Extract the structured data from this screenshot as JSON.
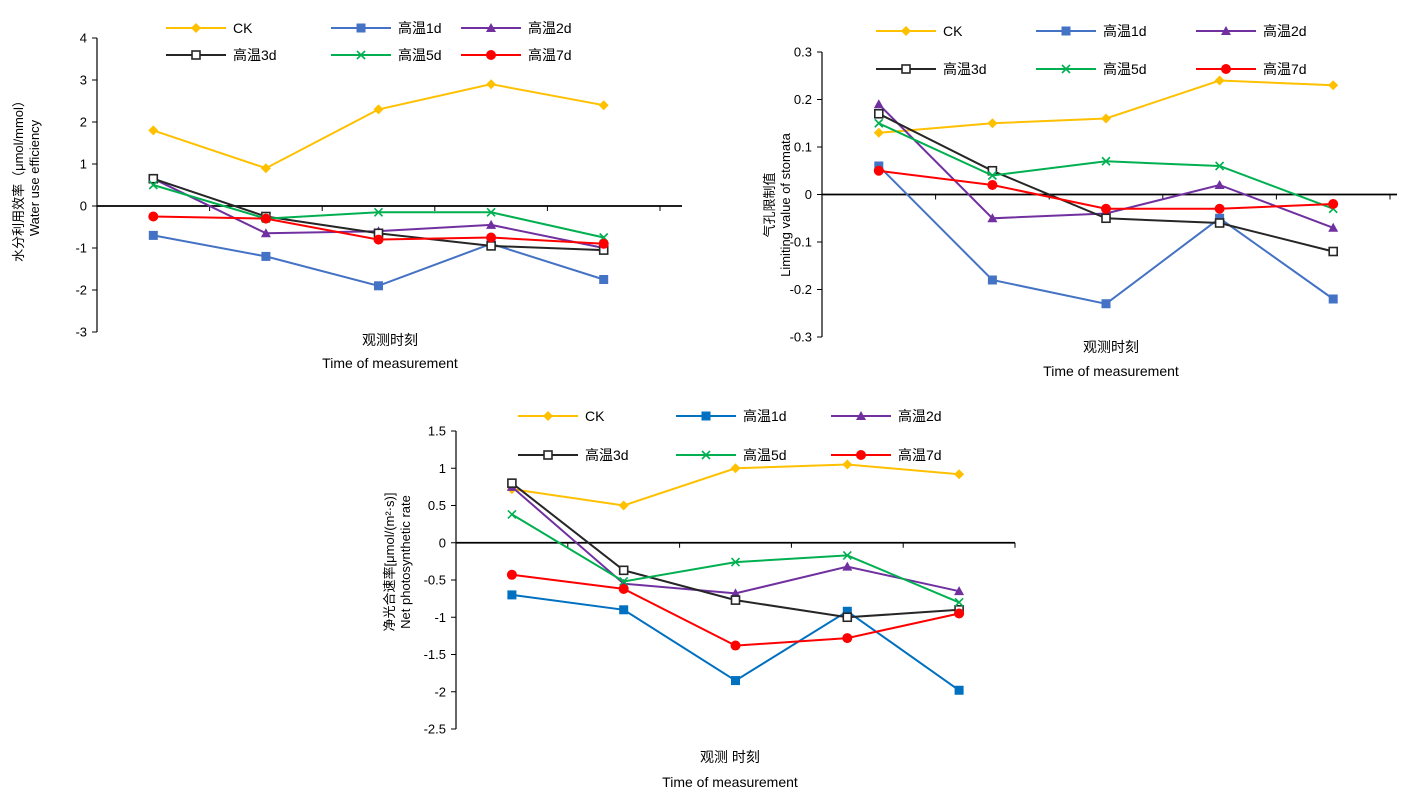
{
  "chart_data": [
    {
      "type": "line",
      "title": "",
      "ylabel_cn": "水分利用效率（μmol/mmol）",
      "ylabel_en": "Water use efficiency",
      "xlabel_cn": "观测时刻",
      "xlabel_en": "Time of measurement",
      "ylim": [
        -3,
        4
      ],
      "yticks": [
        "-3",
        "-2",
        "-1",
        "0",
        "1",
        "2",
        "3",
        "4"
      ],
      "x_count": 5,
      "grid": false,
      "legend_position": "top",
      "series": [
        {
          "name": "CK",
          "color": "#FFC000",
          "marker": "diamond",
          "values": [
            1.8,
            0.9,
            2.3,
            2.9,
            2.4
          ]
        },
        {
          "name": "高温1d",
          "color": "#4472C4",
          "marker": "square",
          "values": [
            -0.7,
            -1.2,
            -1.9,
            -0.9,
            -1.75
          ]
        },
        {
          "name": "高温2d",
          "color": "#7030A0",
          "marker": "triangle",
          "values": [
            0.65,
            -0.65,
            -0.6,
            -0.45,
            -1.0
          ]
        },
        {
          "name": "高温3d",
          "color": "#262626",
          "marker": "open-square",
          "values": [
            0.65,
            -0.25,
            -0.65,
            -0.95,
            -1.05
          ]
        },
        {
          "name": "高温5d",
          "color": "#00B050",
          "marker": "x",
          "values": [
            0.5,
            -0.3,
            -0.15,
            -0.15,
            -0.75
          ]
        },
        {
          "name": "高温7d",
          "color": "#FF0000",
          "marker": "circle",
          "values": [
            -0.25,
            -0.3,
            -0.8,
            -0.75,
            -0.9
          ]
        }
      ]
    },
    {
      "type": "line",
      "title": "",
      "ylabel_cn": "气孔限制值",
      "ylabel_en": "Limiting value of stomata",
      "xlabel_cn": "观测时刻",
      "xlabel_en": "Time of measurement",
      "ylim": [
        -0.3,
        0.3
      ],
      "yticks": [
        "-0.3",
        "-0.2",
        "-0.1",
        "0",
        "0.1",
        "0.2",
        "0.3"
      ],
      "x_count": 5,
      "grid": false,
      "legend_position": "top",
      "series": [
        {
          "name": "CK",
          "color": "#FFC000",
          "marker": "diamond",
          "values": [
            0.13,
            0.15,
            0.16,
            0.24,
            0.23
          ]
        },
        {
          "name": "高温1d",
          "color": "#4472C4",
          "marker": "square",
          "values": [
            0.06,
            -0.18,
            -0.23,
            -0.05,
            -0.22
          ]
        },
        {
          "name": "高温2d",
          "color": "#7030A0",
          "marker": "triangle",
          "values": [
            0.19,
            -0.05,
            -0.04,
            0.02,
            -0.07
          ]
        },
        {
          "name": "高温3d",
          "color": "#262626",
          "marker": "open-square",
          "values": [
            0.17,
            0.05,
            -0.05,
            -0.06,
            -0.12
          ]
        },
        {
          "name": "高温5d",
          "color": "#00B050",
          "marker": "x",
          "values": [
            0.15,
            0.04,
            0.07,
            0.06,
            -0.03
          ]
        },
        {
          "name": "高温7d",
          "color": "#FF0000",
          "marker": "circle",
          "values": [
            0.05,
            0.02,
            -0.03,
            -0.03,
            -0.02
          ]
        }
      ]
    },
    {
      "type": "line",
      "title": "",
      "ylabel_cn": "净光合速率[μmol/(m²·s)]",
      "ylabel_en": "Net photosynthetic rate",
      "xlabel_cn": "观测 时刻",
      "xlabel_en": "Time of measurement",
      "ylim": [
        -2.5,
        1.5
      ],
      "yticks": [
        "-2.5",
        "-2",
        "-1.5",
        "-1",
        "-0.5",
        "0",
        "0.5",
        "1",
        "1.5"
      ],
      "x_count": 5,
      "grid": false,
      "legend_position": "top",
      "series": [
        {
          "name": "CK",
          "color": "#FFC000",
          "marker": "diamond",
          "values": [
            0.72,
            0.5,
            1.0,
            1.05,
            0.92
          ]
        },
        {
          "name": "高温1d",
          "color": "#0070C0",
          "marker": "square",
          "values": [
            -0.7,
            -0.9,
            -1.85,
            -0.92,
            -1.98
          ]
        },
        {
          "name": "高温2d",
          "color": "#7030A0",
          "marker": "triangle",
          "values": [
            0.75,
            -0.55,
            -0.68,
            -0.32,
            -0.65
          ]
        },
        {
          "name": "高温3d",
          "color": "#262626",
          "marker": "open-square",
          "values": [
            0.8,
            -0.37,
            -0.77,
            -1.0,
            -0.9
          ]
        },
        {
          "name": "高温5d",
          "color": "#00B050",
          "marker": "x",
          "values": [
            0.38,
            -0.52,
            -0.26,
            -0.17,
            -0.8
          ]
        },
        {
          "name": "高温7d",
          "color": "#FF0000",
          "marker": "circle",
          "values": [
            -0.43,
            -0.62,
            -1.38,
            -1.28,
            -0.95
          ]
        }
      ]
    }
  ]
}
